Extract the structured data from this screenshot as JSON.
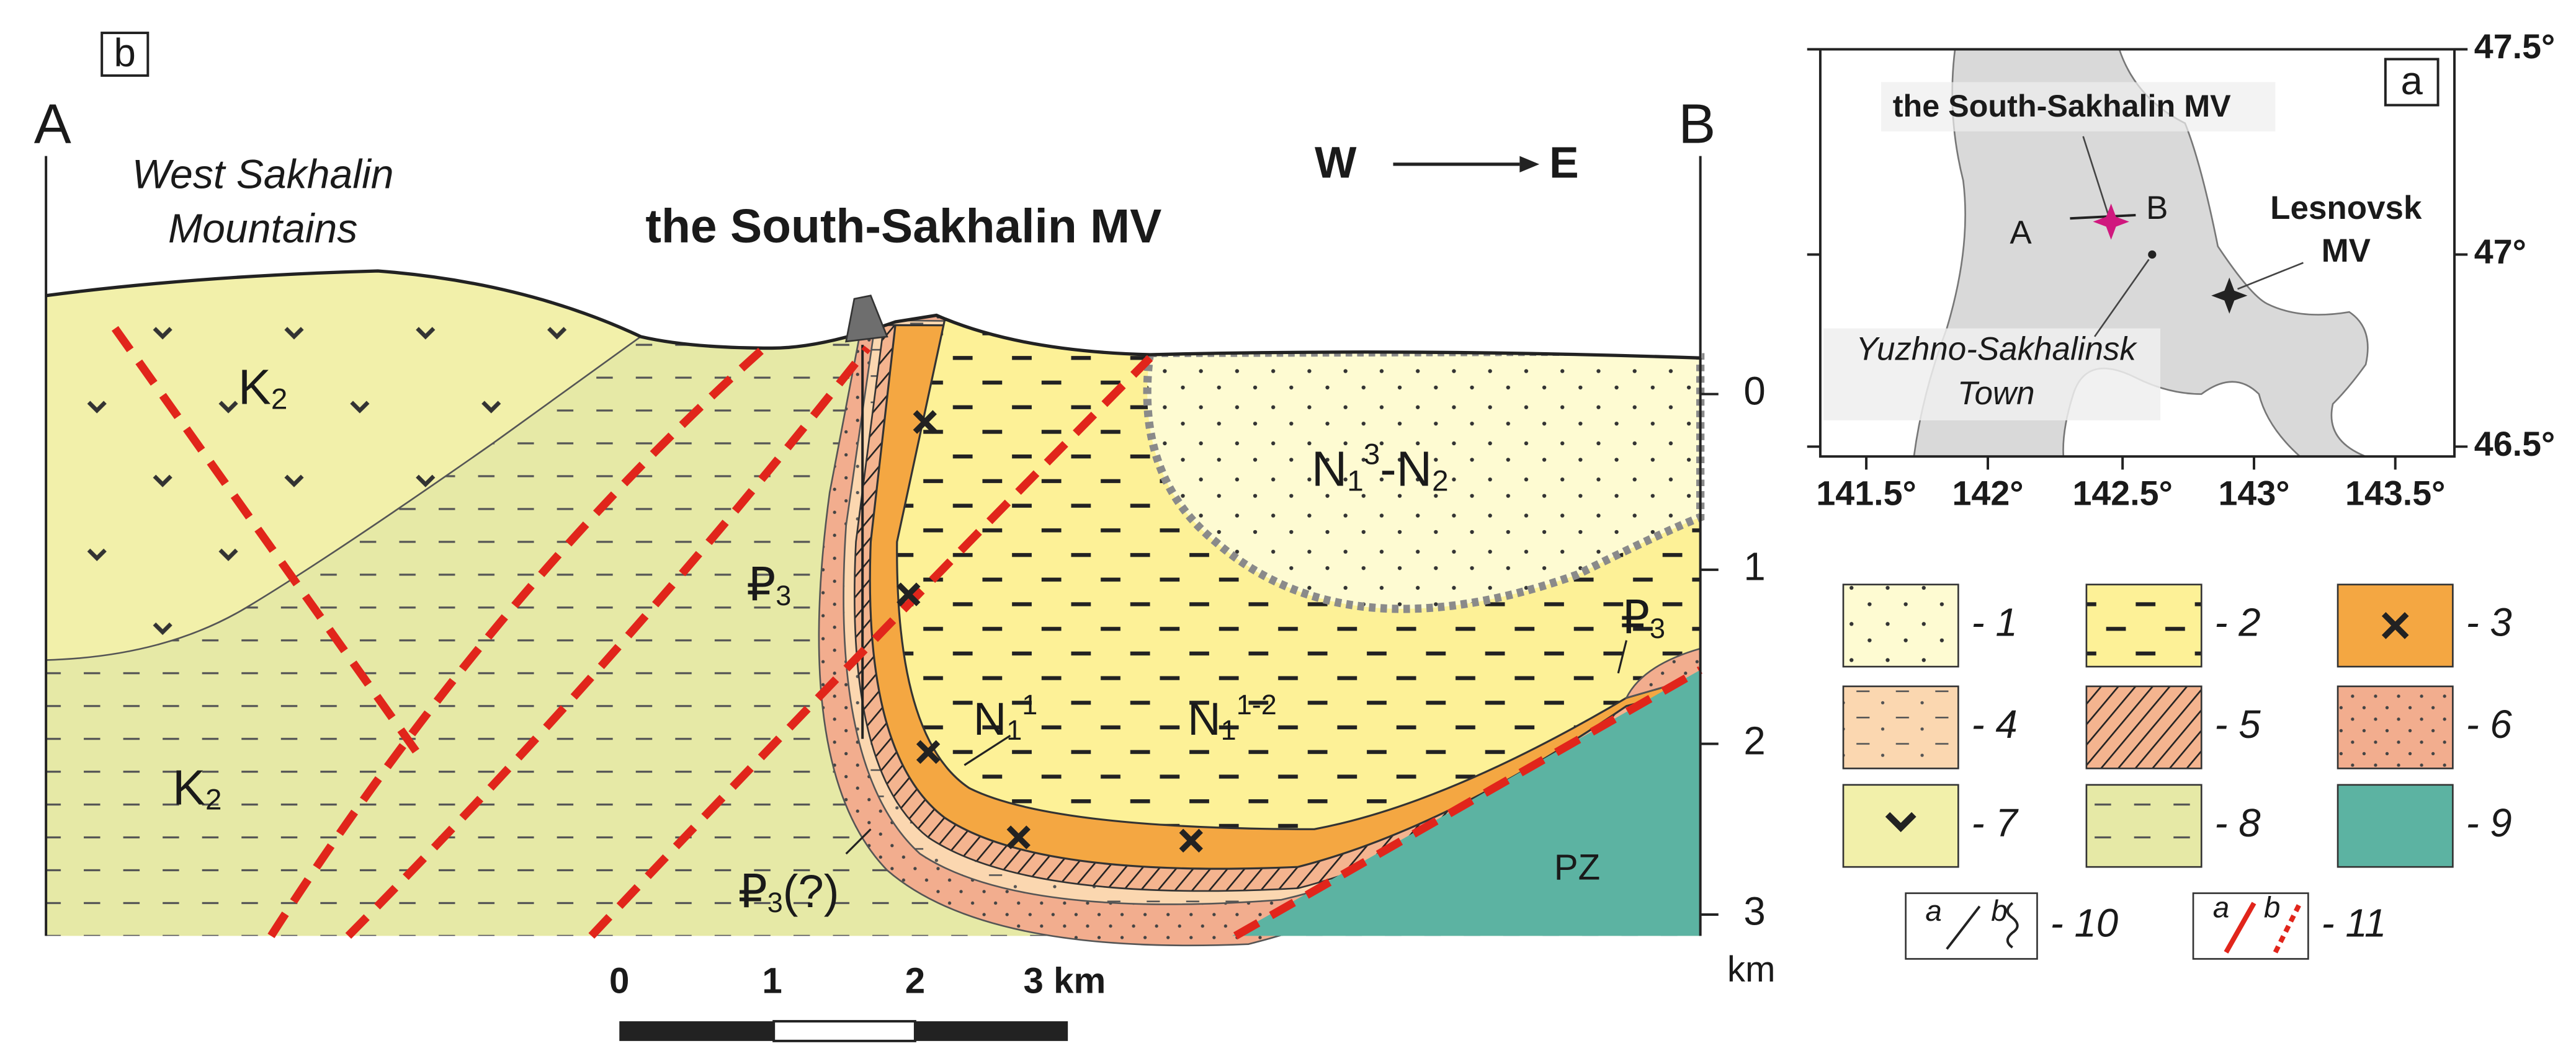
{
  "panel_b": {
    "label": "b",
    "section_ends": [
      "A",
      "B"
    ],
    "region_label": [
      "West Sakhalin",
      "Mountains"
    ],
    "title": "the South-Sakhalin MV",
    "direction": {
      "from": "W",
      "to": "E"
    },
    "formations": [
      {
        "parts": [
          {
            "t": "K"
          },
          {
            "sub": "2"
          }
        ]
      },
      {
        "parts": [
          {
            "t": "₽"
          },
          {
            "sub": "3"
          }
        ]
      },
      {
        "parts": [
          {
            "t": "N"
          },
          {
            "sub": "1"
          },
          {
            "sup": "3"
          },
          {
            "t": "-N"
          },
          {
            "sub": "2"
          }
        ]
      },
      {
        "parts": [
          {
            "t": "N"
          },
          {
            "sub": "1"
          },
          {
            "sup": "1"
          }
        ]
      },
      {
        "parts": [
          {
            "t": "N"
          },
          {
            "sub": "1"
          },
          {
            "sup": "1-2"
          }
        ]
      },
      {
        "parts": [
          {
            "t": "₽"
          },
          {
            "sub": "3"
          }
        ]
      },
      {
        "parts": [
          {
            "t": "K"
          },
          {
            "sub": "2"
          }
        ]
      },
      {
        "parts": [
          {
            "t": "₽"
          },
          {
            "sub": "3"
          },
          {
            "t": "(?)"
          }
        ]
      },
      {
        "parts": [
          {
            "t": "PZ"
          }
        ]
      }
    ],
    "depth_axis": {
      "ticks": [
        "0",
        "1",
        "2",
        "3"
      ],
      "unit": "km"
    },
    "scale_bar": {
      "labels": [
        "0",
        "1",
        "2",
        "3 km"
      ]
    }
  },
  "panel_a": {
    "label": "a",
    "lat_ticks": [
      "47.5°",
      "47°",
      "46.5°"
    ],
    "lon_ticks": [
      "141.5°",
      "142°",
      "142.5°",
      "143°",
      "143.5°"
    ],
    "site_label": "the South-Sakhalin MV",
    "section_ends": [
      "A",
      "B"
    ],
    "other_site": [
      "Lesnovsk",
      "MV"
    ],
    "town": [
      "Yuzhno-Sakhalinsk",
      "Town"
    ]
  },
  "legend": {
    "items": [
      {
        "label": "- 1"
      },
      {
        "label": "- 2"
      },
      {
        "label": "- 3"
      },
      {
        "label": "- 4"
      },
      {
        "label": "- 5"
      },
      {
        "label": "- 6"
      },
      {
        "label": "- 7"
      },
      {
        "label": "- 8"
      },
      {
        "label": "- 9"
      },
      {
        "label": "- 10",
        "a": "a",
        "b": "b"
      },
      {
        "label": "- 11",
        "a": "a",
        "b": "b"
      }
    ]
  }
}
